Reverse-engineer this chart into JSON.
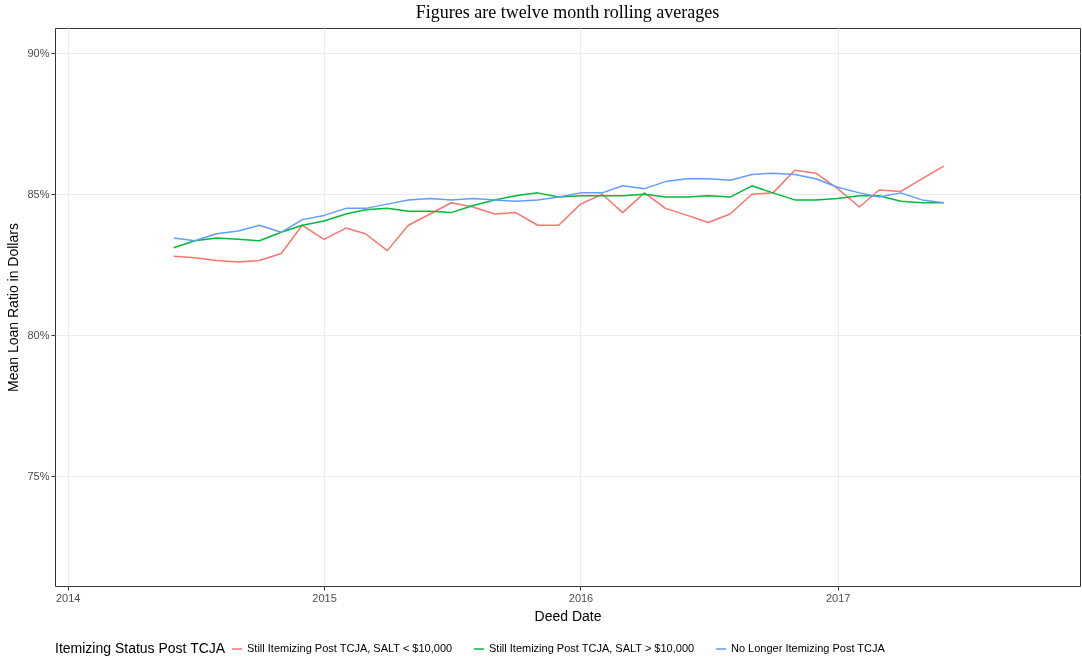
{
  "chart_data": {
    "type": "line",
    "title": "Figures are twelve month rolling averages",
    "xlabel": "Deed Date",
    "ylabel": "Mean Loan Ratio in Dollars",
    "legend_title": "Itemizing Status Post TCJA",
    "x": [
      "2014-06",
      "2014-07",
      "2014-08",
      "2014-09",
      "2014-10",
      "2014-11",
      "2014-12",
      "2015-01",
      "2015-02",
      "2015-03",
      "2015-04",
      "2015-05",
      "2015-06",
      "2015-07",
      "2015-08",
      "2015-09",
      "2015-10",
      "2015-11",
      "2015-12",
      "2016-01",
      "2016-02",
      "2016-03",
      "2016-04",
      "2016-05",
      "2016-06",
      "2016-07",
      "2016-08",
      "2016-09",
      "2016-10",
      "2016-11",
      "2016-12",
      "2017-01",
      "2017-02",
      "2017-03",
      "2017-04",
      "2017-05",
      "2017-06"
    ],
    "series": [
      {
        "name": "Still Itemizing Post TCJA, SALT < $10,000",
        "color": "#f8766d",
        "values": [
          82.8,
          82.75,
          82.65,
          82.6,
          82.65,
          82.9,
          83.9,
          83.4,
          83.8,
          83.6,
          83.0,
          83.9,
          84.3,
          84.7,
          84.55,
          84.3,
          84.35,
          83.9,
          83.9,
          84.65,
          85.0,
          84.35,
          85.05,
          84.5,
          84.25,
          84.0,
          84.3,
          85.0,
          85.05,
          85.85,
          85.75,
          85.2,
          84.55,
          85.15,
          85.1,
          85.55,
          86.0
        ]
      },
      {
        "name": "Still Itemizing Post TCJA, SALT > $10,000",
        "color": "#00ba38",
        "values": [
          83.1,
          83.35,
          83.45,
          83.4,
          83.35,
          83.65,
          83.9,
          84.05,
          84.3,
          84.45,
          84.5,
          84.4,
          84.4,
          84.35,
          84.6,
          84.8,
          84.95,
          85.05,
          84.9,
          84.95,
          84.95,
          84.95,
          85.0,
          84.9,
          84.9,
          84.95,
          84.9,
          85.3,
          85.05,
          84.8,
          84.8,
          84.85,
          84.95,
          84.95,
          84.75,
          84.7,
          84.7
        ]
      },
      {
        "name": "No Longer Itemizing Post TCJA",
        "color": "#619cff",
        "values": [
          83.45,
          83.35,
          83.6,
          83.7,
          83.9,
          83.65,
          84.1,
          84.25,
          84.5,
          84.5,
          84.65,
          84.8,
          84.85,
          84.8,
          84.85,
          84.8,
          84.75,
          84.8,
          84.9,
          85.05,
          85.05,
          85.3,
          85.2,
          85.45,
          85.55,
          85.55,
          85.5,
          85.7,
          85.75,
          85.7,
          85.55,
          85.25,
          85.05,
          84.9,
          85.05,
          84.8,
          84.7
        ]
      }
    ],
    "xlim": [
      "2013-12-14",
      "2017-12-12"
    ],
    "xticks": [
      "2014",
      "2015",
      "2016",
      "2017"
    ],
    "ylim": [
      71.1,
      90.9
    ],
    "yticks": [
      {
        "value": 75,
        "label": "75%"
      },
      {
        "value": 80,
        "label": "80%"
      },
      {
        "value": 85,
        "label": "85%"
      },
      {
        "value": 90,
        "label": "90%"
      }
    ],
    "grid": true,
    "legend": "bottom",
    "marker": "none",
    "line_style": "solid"
  }
}
